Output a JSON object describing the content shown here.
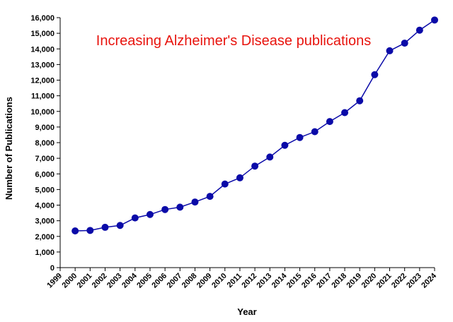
{
  "chart_data": {
    "type": "line",
    "title": "Increasing Alzheimer's Disease publications",
    "title_color": "#e8140e",
    "x_label": "Year",
    "y_label": "Number of Publications",
    "x": [
      2000,
      2001,
      2002,
      2003,
      2004,
      2005,
      2006,
      2007,
      2008,
      2009,
      2010,
      2011,
      2012,
      2013,
      2014,
      2015,
      2016,
      2017,
      2018,
      2019,
      2020,
      2021,
      2022,
      2023,
      2024
    ],
    "series": [
      {
        "name": "Publications",
        "color": "#0a0aa8",
        "values": [
          2350,
          2380,
          2580,
          2700,
          3180,
          3400,
          3720,
          3870,
          4200,
          4560,
          5350,
          5750,
          6500,
          7080,
          7830,
          8330,
          8700,
          9350,
          9920,
          10680,
          12350,
          13880,
          14370,
          15200,
          15850
        ]
      }
    ],
    "xlim": [
      1999,
      2024
    ],
    "ylim": [
      0,
      16000
    ],
    "xticks": [
      1999,
      2000,
      2001,
      2002,
      2003,
      2004,
      2005,
      2006,
      2007,
      2008,
      2009,
      2010,
      2011,
      2012,
      2013,
      2014,
      2015,
      2016,
      2017,
      2018,
      2019,
      2020,
      2021,
      2022,
      2023,
      2024
    ],
    "yticks": [
      0,
      {
        "value": 1000,
        "label": "1,000"
      },
      {
        "value": 2000,
        "label": "2,000"
      },
      {
        "value": 3000,
        "label": "3,000"
      },
      {
        "value": 4000,
        "label": "4,000"
      },
      {
        "value": 5000,
        "label": "5,000"
      },
      {
        "value": 6000,
        "label": "6,000"
      },
      {
        "value": 7000,
        "label": "7,000"
      },
      {
        "value": 8000,
        "label": "8,000"
      },
      {
        "value": 9000,
        "label": "9,000"
      },
      {
        "value": 10000,
        "label": "10,000"
      },
      {
        "value": 11000,
        "label": "11,000"
      },
      {
        "value": 12000,
        "label": "12,000"
      },
      {
        "value": 13000,
        "label": "13,000"
      },
      {
        "value": 14000,
        "label": "14,000"
      },
      {
        "value": 15000,
        "label": "15,000"
      },
      {
        "value": 16000,
        "label": "16,000"
      }
    ],
    "grid": false
  }
}
